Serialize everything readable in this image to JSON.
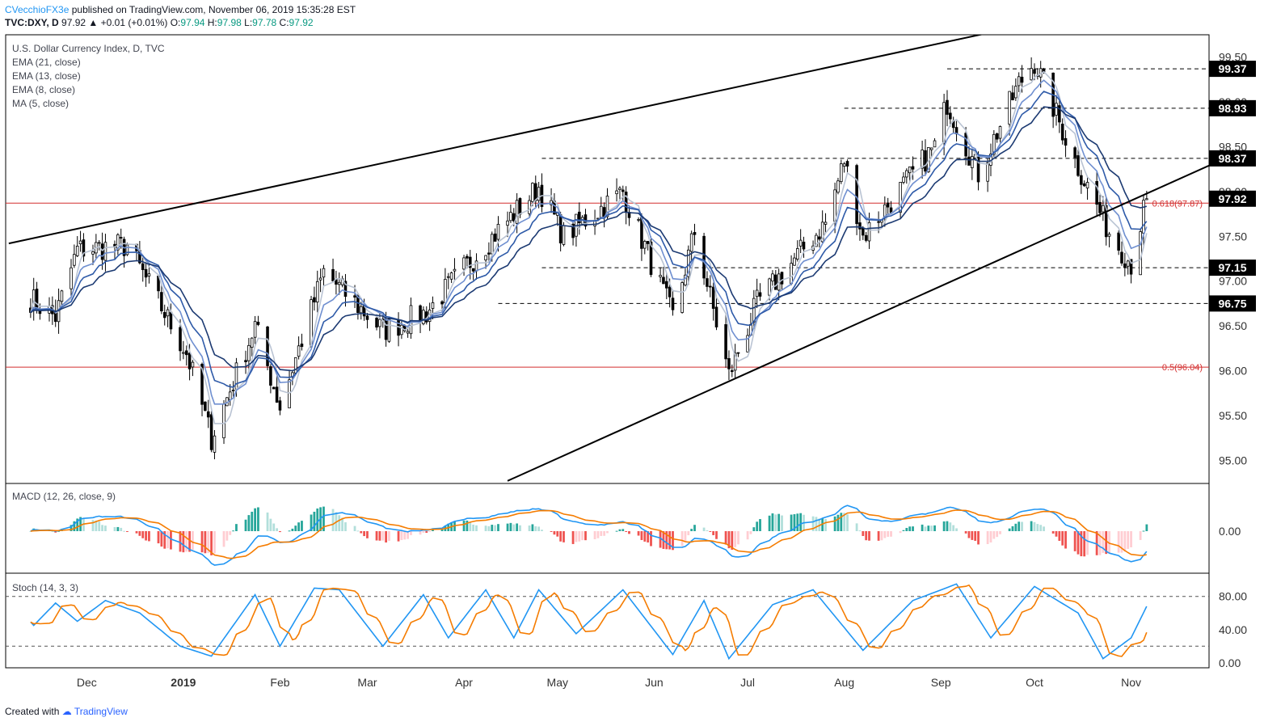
{
  "header": {
    "author": "CVecchioFX3e",
    "published": "published on TradingView.com, November 06, 2019 15:35:28 EST",
    "symbol_line": "TVC:DXY, D",
    "last": "97.92",
    "change": "+0.01 (+0.01%)",
    "open_label": "O:",
    "open": "97.94",
    "high_label": "H:",
    "high": "97.98",
    "low_label": "L:",
    "low": "97.78",
    "close_label": "C:",
    "close": "97.92"
  },
  "legend": {
    "title": "U.S. Dollar Currency Index, D, TVC",
    "items": [
      "EMA (21, close)",
      "EMA (13, close)",
      "EMA (8, close)",
      "MA (5, close)"
    ],
    "macd": "MACD (12, 26, close, 9)",
    "stoch": "Stoch (14, 3, 3)"
  },
  "footer": {
    "created_with": "Created with",
    "brand": "TradingView"
  },
  "colors": {
    "candle": "#000000",
    "ema21": "#1c3a72",
    "ema13": "#2e5aa8",
    "ema8": "#6f8fd0",
    "ma5": "#b9c3d3",
    "macd": "#2196f3",
    "signal": "#f57c00",
    "hist_pos_strong": "#26a69a",
    "hist_pos_weak": "#b2dfdb",
    "hist_neg_strong": "#ef5350",
    "hist_neg_weak": "#ffcdd2",
    "fib": "#d32f2f",
    "stoch_k": "#2196f3",
    "stoch_d": "#f57c00"
  },
  "chart_data": [
    {
      "type": "candlestick",
      "title": "U.S. Dollar Currency Index, D, TVC",
      "x_labels": [
        "Dec",
        "2019",
        "Feb",
        "Mar",
        "Apr",
        "May",
        "Jun",
        "Jul",
        "Aug",
        "Sep",
        "Oct",
        "Nov"
      ],
      "y_ticks": [
        95.0,
        95.5,
        96.0,
        96.5,
        97.0,
        97.5,
        98.0,
        98.5,
        99.0,
        99.5
      ],
      "y_tick_labels": [
        "95.00",
        "95.50",
        "96.00",
        "96.50",
        "97.00",
        "97.50",
        "98.00",
        "98.50",
        "99.00",
        "99.50"
      ],
      "ylim": [
        94.75,
        99.75
      ],
      "price_path": [
        {
          "t": "2018-11-13",
          "p": 96.8
        },
        {
          "t": "2018-11-21",
          "p": 96.6
        },
        {
          "t": "2018-11-28",
          "p": 97.35
        },
        {
          "t": "2018-12-14",
          "p": 97.4
        },
        {
          "t": "2019-01-02",
          "p": 96.2
        },
        {
          "t": "2019-01-10",
          "p": 95.25
        },
        {
          "t": "2019-01-24",
          "p": 96.5
        },
        {
          "t": "2019-02-01",
          "p": 95.6
        },
        {
          "t": "2019-02-15",
          "p": 97.1
        },
        {
          "t": "2019-03-06",
          "p": 96.45
        },
        {
          "t": "2019-03-20",
          "p": 96.65
        },
        {
          "t": "2019-04-05",
          "p": 97.3
        },
        {
          "t": "2019-04-25",
          "p": 98.05
        },
        {
          "t": "2019-05-03",
          "p": 97.5
        },
        {
          "t": "2019-05-22",
          "p": 98.0
        },
        {
          "t": "2019-06-07",
          "p": 96.6
        },
        {
          "t": "2019-06-14",
          "p": 97.55
        },
        {
          "t": "2019-06-25",
          "p": 95.95
        },
        {
          "t": "2019-07-04",
          "p": 96.75
        },
        {
          "t": "2019-07-26",
          "p": 97.65
        },
        {
          "t": "2019-08-01",
          "p": 98.35
        },
        {
          "t": "2019-08-07",
          "p": 97.5
        },
        {
          "t": "2019-08-30",
          "p": 98.5
        },
        {
          "t": "2019-09-03",
          "p": 99.0
        },
        {
          "t": "2019-09-13",
          "p": 98.2
        },
        {
          "t": "2019-09-26",
          "p": 99.2
        },
        {
          "t": "2019-10-01",
          "p": 99.45
        },
        {
          "t": "2019-10-14",
          "p": 98.35
        },
        {
          "t": "2019-10-25",
          "p": 97.55
        },
        {
          "t": "2019-11-01",
          "p": 97.2
        },
        {
          "t": "2019-11-06",
          "p": 97.92
        }
      ],
      "levels": [
        {
          "value": 99.37,
          "label": "99.37",
          "from": "2019-09-03"
        },
        {
          "value": 98.93,
          "label": "98.93",
          "from": "2019-08-01"
        },
        {
          "value": 98.37,
          "label": "98.37",
          "from": "2019-04-26"
        },
        {
          "value": 97.15,
          "label": "97.15",
          "from": "2019-04-26"
        },
        {
          "value": 96.75,
          "label": "96.75",
          "from": "2019-04-12"
        }
      ],
      "fib_levels": [
        {
          "value": 97.87,
          "label": "0.618(97.87)"
        },
        {
          "value": 96.04,
          "label": "0.5(96.04)"
        }
      ],
      "trendlines": [
        {
          "from": {
            "t": "2018-11-06",
            "p": 97.42
          },
          "to": {
            "t": "2019-11-26",
            "p": 100.3
          }
        },
        {
          "from": {
            "t": "2019-04-15",
            "p": 94.77
          },
          "to": {
            "t": "2019-11-26",
            "p": 98.29
          }
        }
      ],
      "last_price_label": "97.92",
      "series": [
        "EMA (21, close)",
        "EMA (13, close)",
        "EMA (8, close)",
        "MA (5, close)"
      ]
    },
    {
      "type": "line",
      "title": "MACD (12, 26, close, 9)",
      "y_ticks": [
        0
      ],
      "y_tick_labels": [
        "0.00"
      ]
    },
    {
      "type": "line",
      "title": "Stoch (14, 3, 3)",
      "y_ticks": [
        0,
        40,
        80
      ],
      "y_tick_labels": [
        "0.00",
        "40.00",
        "80.00"
      ],
      "ylim": [
        -6,
        106
      ],
      "bands": [
        20,
        80
      ],
      "k_path": [
        {
          "t": "2018-11-06",
          "k": 78
        },
        {
          "t": "2018-11-14",
          "k": 45
        },
        {
          "t": "2018-11-21",
          "k": 72
        },
        {
          "t": "2018-11-28",
          "k": 50
        },
        {
          "t": "2018-12-07",
          "k": 75
        },
        {
          "t": "2018-12-18",
          "k": 60
        },
        {
          "t": "2018-12-31",
          "k": 20
        },
        {
          "t": "2019-01-10",
          "k": 8
        },
        {
          "t": "2019-01-24",
          "k": 82
        },
        {
          "t": "2019-02-01",
          "k": 20
        },
        {
          "t": "2019-02-12",
          "k": 90
        },
        {
          "t": "2019-02-20",
          "k": 88
        },
        {
          "t": "2019-03-06",
          "k": 20
        },
        {
          "t": "2019-03-19",
          "k": 82
        },
        {
          "t": "2019-03-27",
          "k": 30
        },
        {
          "t": "2019-04-08",
          "k": 88
        },
        {
          "t": "2019-04-17",
          "k": 30
        },
        {
          "t": "2019-04-25",
          "k": 88
        },
        {
          "t": "2019-05-07",
          "k": 35
        },
        {
          "t": "2019-05-22",
          "k": 88
        },
        {
          "t": "2019-06-07",
          "k": 10
        },
        {
          "t": "2019-06-17",
          "k": 75
        },
        {
          "t": "2019-06-25",
          "k": 5
        },
        {
          "t": "2019-07-09",
          "k": 70
        },
        {
          "t": "2019-07-22",
          "k": 88
        },
        {
          "t": "2019-08-07",
          "k": 15
        },
        {
          "t": "2019-08-23",
          "k": 75
        },
        {
          "t": "2019-09-06",
          "k": 95
        },
        {
          "t": "2019-09-17",
          "k": 30
        },
        {
          "t": "2019-10-01",
          "k": 92
        },
        {
          "t": "2019-10-15",
          "k": 60
        },
        {
          "t": "2019-10-23",
          "k": 5
        },
        {
          "t": "2019-11-01",
          "k": 30
        },
        {
          "t": "2019-11-06",
          "k": 68
        }
      ]
    }
  ]
}
